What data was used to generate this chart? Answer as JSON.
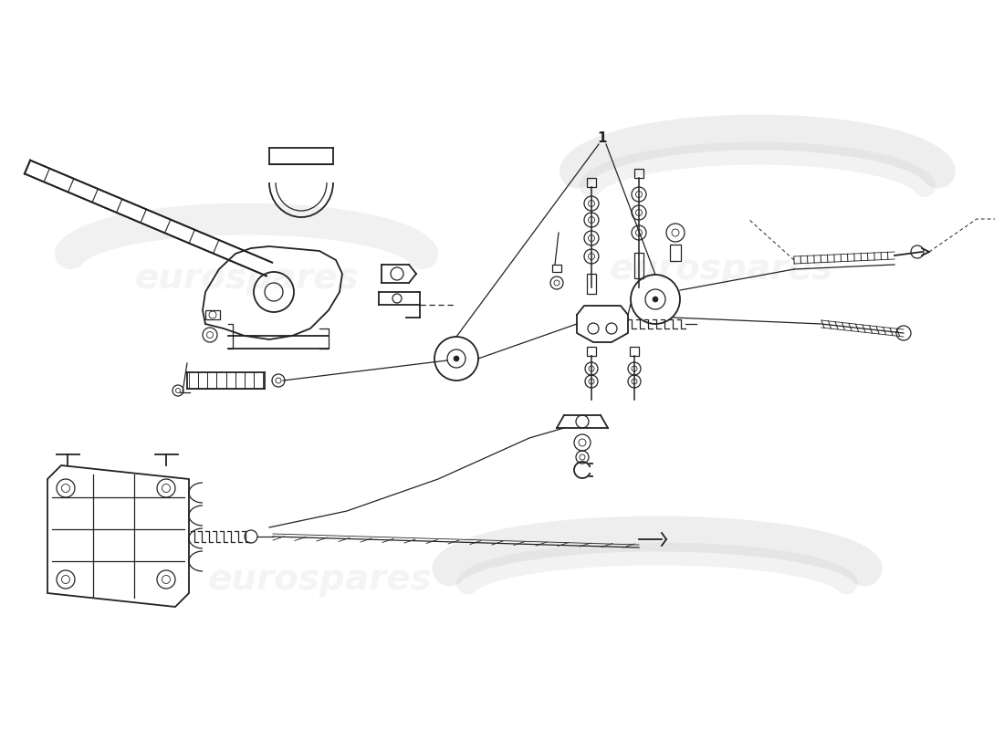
{
  "bg_color": "#ffffff",
  "line_color": "#222222",
  "watermark_color": "#c8c8c8",
  "watermark_text": "eurospares",
  "fig_width": 11.0,
  "fig_height": 8.0,
  "dpi": 100,
  "part_number": "1"
}
